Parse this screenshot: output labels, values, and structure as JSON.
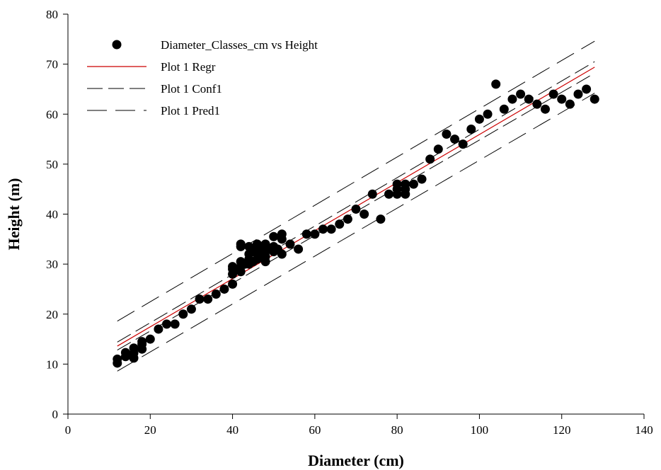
{
  "chart_data": {
    "type": "scatter",
    "title": "",
    "xlabel": "Diameter (cm)",
    "ylabel": "Height (m)",
    "xlim": [
      0,
      140
    ],
    "ylim": [
      0,
      80
    ],
    "xticks": [
      0,
      20,
      40,
      60,
      80,
      100,
      120,
      140
    ],
    "yticks": [
      0,
      10,
      20,
      30,
      40,
      50,
      60,
      70,
      80
    ],
    "grid": false,
    "legend_position": "top-left",
    "colors": {
      "points": "#000000",
      "regression": "#cc0000",
      "conf": "#000000",
      "pred": "#000000"
    },
    "legend": [
      {
        "label": "Diameter_Classes_cm vs Height",
        "kind": "point"
      },
      {
        "label": "Plot 1 Regr",
        "kind": "regr"
      },
      {
        "label": "Plot 1 Conf1",
        "kind": "conf"
      },
      {
        "label": "Plot 1 Pred1",
        "kind": "pred"
      }
    ],
    "series": [
      {
        "name": "Diameter_Classes_cm vs Height",
        "kind": "scatter",
        "points": [
          [
            12,
            10.2
          ],
          [
            12,
            11
          ],
          [
            14,
            11.5
          ],
          [
            14,
            12.3
          ],
          [
            16,
            11.2
          ],
          [
            16,
            12.2
          ],
          [
            16,
            13.2
          ],
          [
            18,
            13
          ],
          [
            18,
            14
          ],
          [
            18,
            14.5
          ],
          [
            20,
            15
          ],
          [
            22,
            17
          ],
          [
            24,
            18
          ],
          [
            26,
            18
          ],
          [
            28,
            20
          ],
          [
            30,
            21
          ],
          [
            32,
            23
          ],
          [
            34,
            23
          ],
          [
            36,
            24
          ],
          [
            38,
            25
          ],
          [
            40,
            26
          ],
          [
            40,
            28
          ],
          [
            40,
            29
          ],
          [
            40,
            29.5
          ],
          [
            42,
            28.5
          ],
          [
            42,
            29.5
          ],
          [
            42,
            30.5
          ],
          [
            42,
            33.5
          ],
          [
            42,
            34
          ],
          [
            43,
            30
          ],
          [
            44,
            30
          ],
          [
            44,
            31
          ],
          [
            44,
            32
          ],
          [
            44,
            33.5
          ],
          [
            45,
            30.5
          ],
          [
            45,
            32.5
          ],
          [
            46,
            31
          ],
          [
            46,
            32
          ],
          [
            46,
            33
          ],
          [
            46,
            34
          ],
          [
            47,
            31.5
          ],
          [
            47,
            33.5
          ],
          [
            48,
            30.5
          ],
          [
            48,
            31.5
          ],
          [
            48,
            32.5
          ],
          [
            48,
            34
          ],
          [
            49,
            33
          ],
          [
            50,
            32.5
          ],
          [
            50,
            33.5
          ],
          [
            50,
            35.5
          ],
          [
            51,
            33
          ],
          [
            52,
            32
          ],
          [
            52,
            35
          ],
          [
            52,
            36
          ],
          [
            54,
            34
          ],
          [
            56,
            33
          ],
          [
            58,
            36
          ],
          [
            60,
            36
          ],
          [
            62,
            37
          ],
          [
            64,
            37
          ],
          [
            66,
            38
          ],
          [
            68,
            39
          ],
          [
            70,
            41
          ],
          [
            72,
            40
          ],
          [
            74,
            44
          ],
          [
            76,
            39
          ],
          [
            78,
            44
          ],
          [
            80,
            44
          ],
          [
            80,
            45
          ],
          [
            80,
            46
          ],
          [
            82,
            44
          ],
          [
            82,
            45
          ],
          [
            82,
            46
          ],
          [
            84,
            46
          ],
          [
            86,
            47
          ],
          [
            88,
            51
          ],
          [
            90,
            53
          ],
          [
            92,
            56
          ],
          [
            94,
            55
          ],
          [
            96,
            54
          ],
          [
            98,
            57
          ],
          [
            100,
            59
          ],
          [
            102,
            60
          ],
          [
            104,
            66
          ],
          [
            106,
            61
          ],
          [
            108,
            63
          ],
          [
            110,
            64
          ],
          [
            112,
            63
          ],
          [
            114,
            62
          ],
          [
            116,
            61
          ],
          [
            118,
            64
          ],
          [
            120,
            63
          ],
          [
            122,
            62
          ],
          [
            124,
            64
          ],
          [
            126,
            65
          ],
          [
            128,
            63
          ]
        ]
      },
      {
        "name": "Plot 1 Regr",
        "kind": "regr",
        "x": [
          12,
          128
        ],
        "y": [
          13.6,
          69.4
        ]
      },
      {
        "name": "Plot 1 Conf1",
        "kind": "conf",
        "x": [
          12,
          128
        ],
        "y": [
          12.8,
          68.2
        ]
      },
      {
        "name": "Plot 1 Conf1",
        "kind": "conf",
        "x": [
          12,
          128
        ],
        "y": [
          14.4,
          70.5
        ]
      },
      {
        "name": "Plot 1 Pred1",
        "kind": "pred",
        "x": [
          12,
          128
        ],
        "y": [
          8.6,
          64.2
        ]
      },
      {
        "name": "Plot 1 Pred1",
        "kind": "pred",
        "x": [
          12,
          128
        ],
        "y": [
          18.6,
          74.6
        ]
      }
    ]
  }
}
